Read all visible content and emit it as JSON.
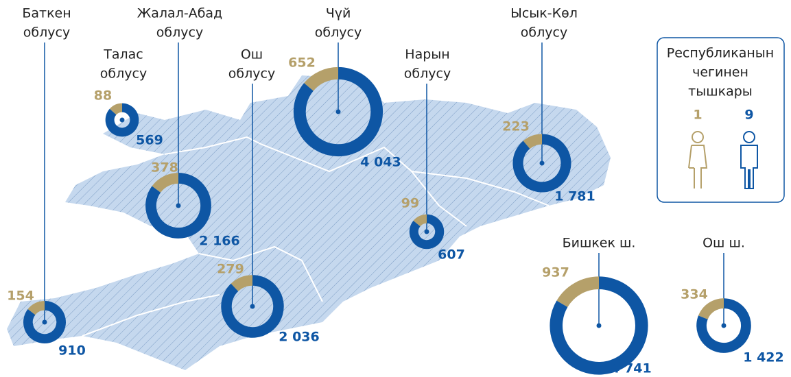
{
  "colors": {
    "female": "#b5a06a",
    "male": "#0e56a4"
  },
  "regions": [
    {
      "name_lines": [
        "Баткен",
        "облусу"
      ],
      "values": [
        154,
        910
      ],
      "value_labels": [
        "154",
        "910"
      ]
    },
    {
      "name_lines": [
        "Талас",
        "облусу"
      ],
      "values": [
        88,
        569
      ],
      "value_labels": [
        "88",
        "569"
      ]
    },
    {
      "name_lines": [
        "Жалал-Абад",
        "облусу"
      ],
      "values": [
        378,
        2166
      ],
      "value_labels": [
        "378",
        "2 166"
      ]
    },
    {
      "name_lines": [
        "Ош",
        "облусу"
      ],
      "values": [
        279,
        2036
      ],
      "value_labels": [
        "279",
        "2 036"
      ]
    },
    {
      "name_lines": [
        "Чүй",
        "облусу"
      ],
      "values": [
        652,
        4043
      ],
      "value_labels": [
        "652",
        "4 043"
      ]
    },
    {
      "name_lines": [
        "Нарын",
        "облусу"
      ],
      "values": [
        99,
        607
      ],
      "value_labels": [
        "99",
        "607"
      ]
    },
    {
      "name_lines": [
        "Ысык-Көл",
        "облусу"
      ],
      "values": [
        223,
        1781
      ],
      "value_labels": [
        "223",
        "1 781"
      ]
    },
    {
      "name_lines": [
        "Бишкек ш."
      ],
      "values": [
        937,
        4741
      ],
      "value_labels": [
        "937",
        "4 741"
      ]
    },
    {
      "name_lines": [
        "Ош ш."
      ],
      "values": [
        334,
        1422
      ],
      "value_labels": [
        "334",
        "1 422"
      ]
    }
  ],
  "outside": {
    "title_lines": [
      "Республиканын",
      "чегинен",
      "тышкары"
    ],
    "values": [
      1,
      9
    ]
  }
}
